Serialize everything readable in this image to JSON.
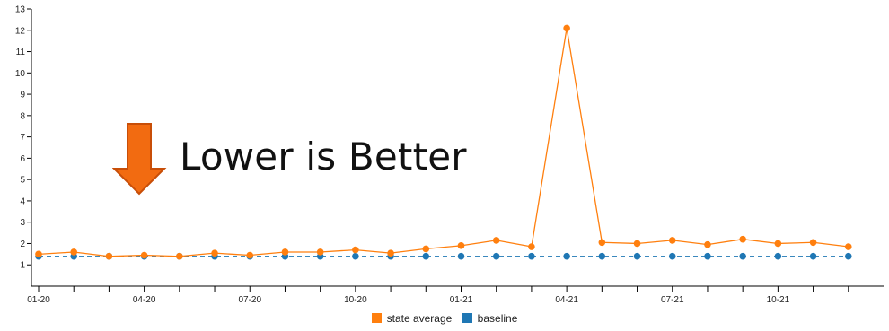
{
  "annotation": {
    "text": "Lower is Better",
    "arrow_color": "#f26b11",
    "arrow_stroke": "#c84e08",
    "icon": "down-arrow-icon"
  },
  "chart_data": {
    "type": "line",
    "x": [
      "01-20",
      "02-20",
      "03-20",
      "04-20",
      "05-20",
      "06-20",
      "07-20",
      "08-20",
      "09-20",
      "10-20",
      "11-20",
      "12-20",
      "01-21",
      "02-21",
      "03-21",
      "04-21",
      "05-21",
      "06-21",
      "07-21",
      "08-21",
      "09-21",
      "10-21",
      "11-21",
      "12-21"
    ],
    "x_tick_labels": [
      "01-20",
      "04-20",
      "07-20",
      "10-20",
      "01-21",
      "04-21",
      "07-21",
      "10-21"
    ],
    "ylim": [
      0,
      13
    ],
    "y_ticks": [
      1,
      2,
      3,
      4,
      5,
      6,
      7,
      8,
      9,
      10,
      11,
      12,
      13
    ],
    "series": [
      {
        "name": "state average",
        "color": "#ff7f0e",
        "line_style": "solid",
        "values": [
          1.5,
          1.6,
          1.4,
          1.45,
          1.4,
          1.55,
          1.45,
          1.6,
          1.6,
          1.7,
          1.55,
          1.75,
          1.9,
          2.15,
          1.85,
          12.1,
          2.05,
          2.0,
          2.15,
          1.95,
          2.2,
          2.0,
          2.05,
          1.85
        ]
      },
      {
        "name": "baseline",
        "color": "#1f77b4",
        "line_style": "dashed",
        "values": [
          1.4,
          1.4,
          1.4,
          1.4,
          1.4,
          1.4,
          1.4,
          1.4,
          1.4,
          1.4,
          1.4,
          1.4,
          1.4,
          1.4,
          1.4,
          1.4,
          1.4,
          1.4,
          1.4,
          1.4,
          1.4,
          1.4,
          1.4,
          1.4
        ]
      }
    ],
    "grid": false,
    "legend_position": "bottom"
  }
}
